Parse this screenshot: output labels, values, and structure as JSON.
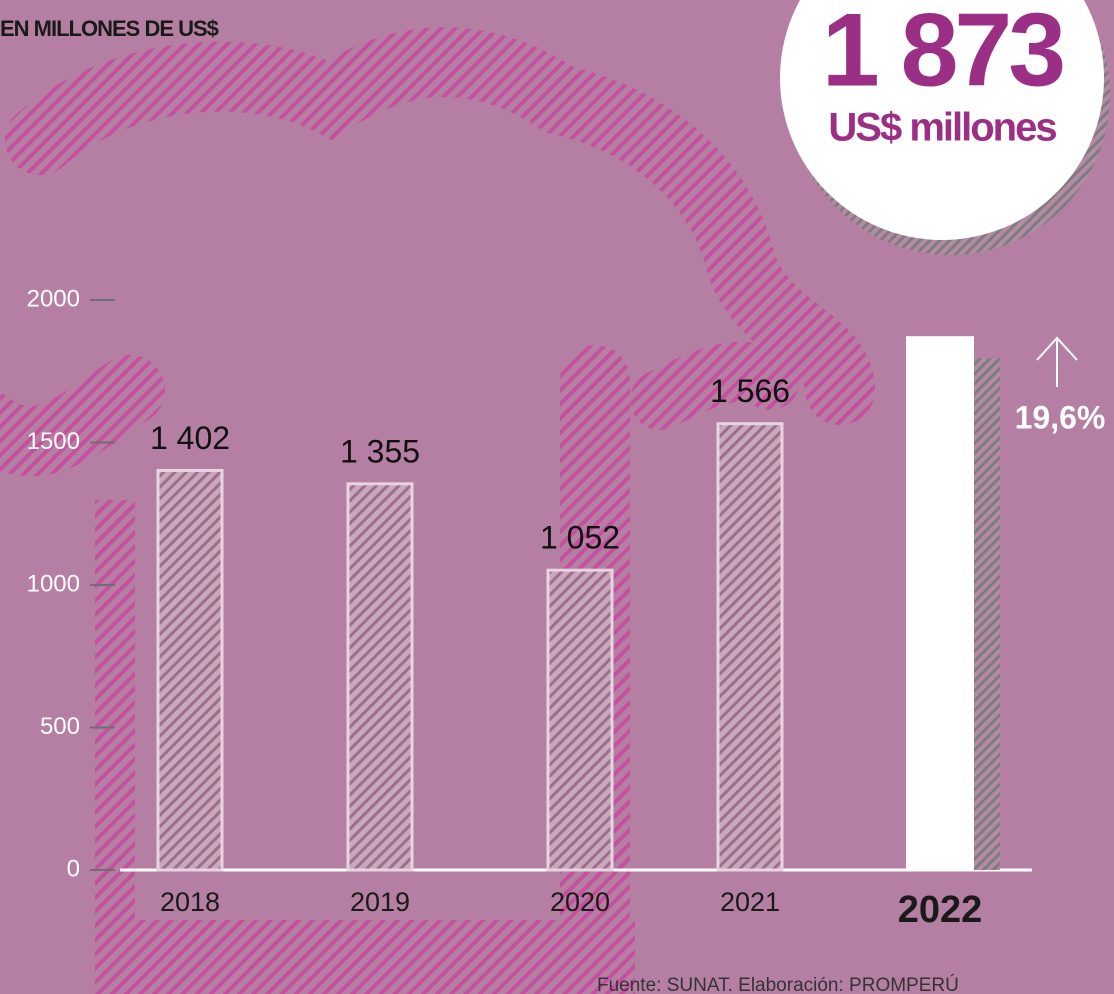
{
  "chart_data": {
    "type": "bar",
    "title": "EN MILLONES DE US$",
    "categories": [
      "2018",
      "2019",
      "2020",
      "2021",
      "2022"
    ],
    "values": [
      1402,
      1355,
      1052,
      1566,
      1873
    ],
    "value_labels": [
      "1 402",
      "1 355",
      "1 052",
      "1 566",
      "1 873"
    ],
    "unit_label": "US$ millones",
    "annotation": "19,6%",
    "source": "Fuente: SUNAT. Elaboración: PROMPERÚ",
    "ylim": [
      0,
      2000
    ],
    "yticks": [
      0,
      500,
      1000,
      1500,
      2000
    ],
    "color": "#ffffff"
  }
}
